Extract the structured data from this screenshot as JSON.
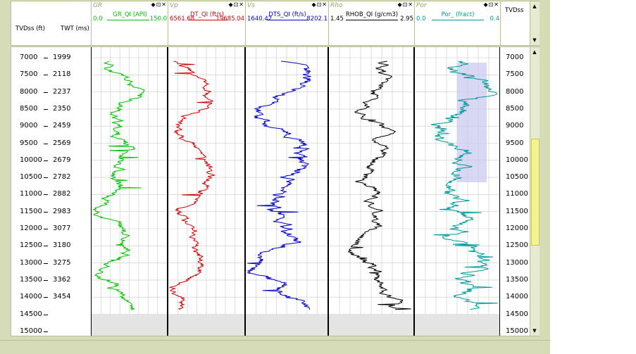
{
  "left_header": {
    "tvdss": "TVDss (ft)",
    "twt": "TWT (ms)"
  },
  "right_header": {
    "tvdss": "TVDss"
  },
  "track_controls": "◆⊡✕",
  "scroll": {
    "up": "▲",
    "down": "▼"
  },
  "tracks": [
    {
      "id": "gr",
      "name": "GR",
      "curve": "GR_QI (API)",
      "min": "0.0",
      "max": "150.0",
      "color": "#00c000"
    },
    {
      "id": "vp",
      "name": "Vp",
      "curve": "DT_QI (ft/s)",
      "min": "6561.68",
      "max": "19685.04",
      "color": "#d00000"
    },
    {
      "id": "vs",
      "name": "Vs",
      "curve": "DTS_QI (ft/s)",
      "min": "1640.42",
      "max": "8202.1",
      "color": "#0000c8"
    },
    {
      "id": "rho",
      "name": "Rho",
      "curve": "RHOB_QI (g/cm3)",
      "min": "1.45",
      "max": "2.95",
      "color": "#000000"
    },
    {
      "id": "por",
      "name": "Por",
      "curve": "Por_ (fract)",
      "min": "0.0",
      "max": "0.4",
      "color": "#009a9a"
    }
  ],
  "depth_ticks": [
    "7000",
    "7500",
    "8000",
    "8500",
    "9000",
    "9500",
    "10000",
    "10500",
    "11000",
    "11500",
    "12000",
    "12500",
    "13000",
    "13500",
    "14000",
    "14500",
    "15000"
  ],
  "twt_ticks": [
    "1999",
    "2118",
    "2237",
    "2350",
    "2459",
    "2569",
    "2679",
    "2782",
    "2882",
    "2983",
    "3077",
    "3180",
    "3275",
    "3362",
    "3454"
  ]
}
